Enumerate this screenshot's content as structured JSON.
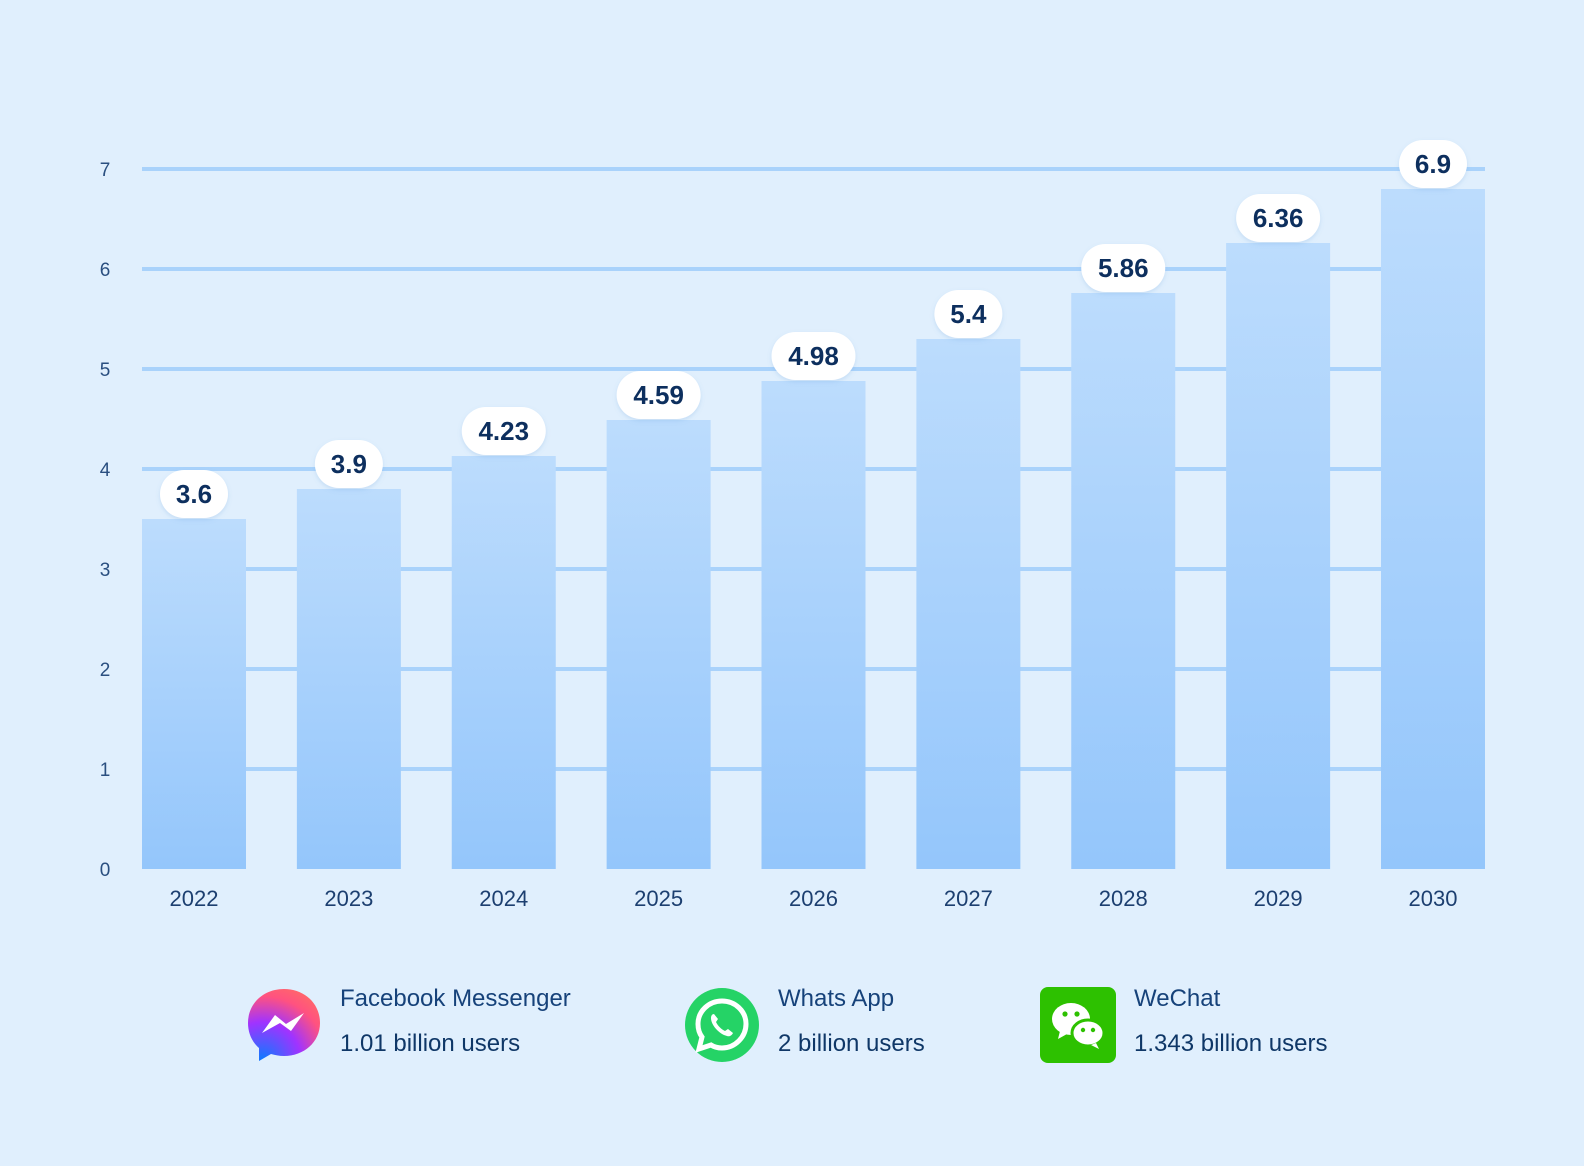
{
  "chart_data": {
    "type": "bar",
    "categories": [
      "2022",
      "2023",
      "2024",
      "2025",
      "2026",
      "2027",
      "2028",
      "2029",
      "2030"
    ],
    "values": [
      3.6,
      3.9,
      4.23,
      4.59,
      4.98,
      5.4,
      5.86,
      6.36,
      6.9
    ],
    "data_labels": [
      "3.6",
      "3.9",
      "4.23",
      "4.59",
      "4.98",
      "5.4",
      "5.86",
      "6.36",
      "6.9"
    ],
    "ylim": [
      0,
      7
    ],
    "yticks": [
      "0",
      "1",
      "2",
      "3",
      "4",
      "5",
      "6",
      "7"
    ],
    "grid": true,
    "colors": {
      "bar_top": "#bcdcfd",
      "bar_bottom": "#94c6fb",
      "grid": "#a9d2fb",
      "label_bg": "#ffffff",
      "text": "#0d2f5e"
    }
  },
  "legend": [
    {
      "icon": "messenger-icon",
      "name": "Facebook Messenger",
      "value": "1.01 billion users",
      "color": "#a033ff"
    },
    {
      "icon": "whatsapp-icon",
      "name": "Whats App",
      "value": "2 billion users",
      "color": "#25d366"
    },
    {
      "icon": "wechat-icon",
      "name": "WeChat",
      "value": "1.343 billion users",
      "color": "#2dc100"
    }
  ]
}
